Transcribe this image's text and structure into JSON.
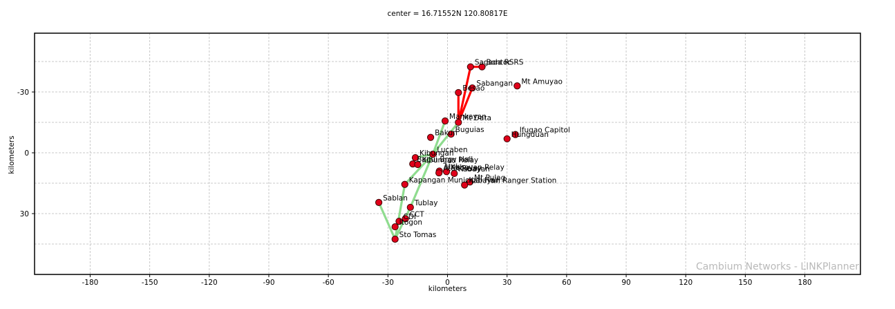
{
  "title": "center = 16.71552N 120.80817E",
  "watermark": "Cambium Networks - LINKPlanner",
  "chart_data": {
    "type": "scatter",
    "title": "center = 16.71552N 120.80817E",
    "xlabel": "kilometers",
    "ylabel": "kilometers",
    "xlim": [
      -208,
      208
    ],
    "ylim": [
      -59,
      60
    ],
    "y_inverted": true,
    "grid": true,
    "x_ticks": [
      -180,
      -150,
      -120,
      -90,
      -60,
      -30,
      0,
      30,
      60,
      90,
      120,
      150,
      180
    ],
    "y_ticks": [
      -30,
      0,
      30
    ],
    "points": [
      {
        "name": "Sagada RS",
        "x": 11.6,
        "y": -42.4
      },
      {
        "name": "Bontoc RS",
        "x": 17.4,
        "y": -42.4
      },
      {
        "name": "Sabangan",
        "x": 12.5,
        "y": -32.0
      },
      {
        "name": "Besao",
        "x": 5.5,
        "y": -29.7
      },
      {
        "name": "Mt Amuyao",
        "x": 35.1,
        "y": -33.0
      },
      {
        "name": "Mankayan",
        "x": -1.2,
        "y": -15.7
      },
      {
        "name": "Mt Data",
        "x": 5.5,
        "y": -15.0
      },
      {
        "name": "Buguias",
        "x": 1.8,
        "y": -9.2
      },
      {
        "name": "Bakun",
        "x": -8.5,
        "y": -7.6
      },
      {
        "name": "Ifugao Capitol",
        "x": 34.2,
        "y": -9.0
      },
      {
        "name": "Hungduan",
        "x": 30.0,
        "y": -6.9
      },
      {
        "name": "Lucaben",
        "x": -7.4,
        "y": 0.7
      },
      {
        "name": "Kibungan",
        "x": -16.2,
        "y": 2.4
      },
      {
        "name": "Bagui Brgy Hall",
        "x": -17.5,
        "y": 5.5
      },
      {
        "name": "Kibungan Relay",
        "x": -15.0,
        "y": 5.8
      },
      {
        "name": "Atok",
        "x": -4.1,
        "y": 9.0
      },
      {
        "name": "Atok Relay",
        "x": -4.3,
        "y": 9.9
      },
      {
        "name": "Kabayan Relay",
        "x": -0.5,
        "y": 9.3
      },
      {
        "name": "Kabayan",
        "x": 3.4,
        "y": 10.2
      },
      {
        "name": "Mt Pulag",
        "x": 11.3,
        "y": 14.4
      },
      {
        "name": "Kabayan Ranger Station",
        "x": 8.6,
        "y": 15.9
      },
      {
        "name": "Kapangan Municipal Hall",
        "x": -21.5,
        "y": 15.6
      },
      {
        "name": "Sablan",
        "x": -34.6,
        "y": 24.5
      },
      {
        "name": "Tublay",
        "x": -18.7,
        "y": 26.9
      },
      {
        "name": "CCT",
        "x": -21.2,
        "y": 32.5
      },
      {
        "name": "CDI",
        "x": -24.4,
        "y": 33.8
      },
      {
        "name": "Itogon",
        "x": -26.4,
        "y": 36.5
      },
      {
        "name": "Sto Tomas",
        "x": -26.4,
        "y": 42.6
      }
    ],
    "links": [
      {
        "from": "Mt Data",
        "to": "Sagada RS",
        "color": "#ff0000"
      },
      {
        "from": "Mt Data",
        "to": "Sabangan",
        "color": "#ff0000"
      },
      {
        "from": "Mt Data",
        "to": "Besao",
        "color": "#ff0000"
      },
      {
        "from": "Sagada RS",
        "to": "Bontoc RS",
        "color": "#ff0000"
      },
      {
        "from": "Mt Data",
        "to": "Lucaben",
        "color": "#8fdc8f"
      },
      {
        "from": "Mankayan",
        "to": "Lucaben",
        "color": "#8fdc8f"
      },
      {
        "from": "Lucaben",
        "to": "Kibungan",
        "color": "#8fdc8f"
      },
      {
        "from": "Lucaben",
        "to": "Tublay",
        "color": "#8fdc8f"
      },
      {
        "from": "Lucaben",
        "to": "Kapangan Municipal Hall",
        "color": "#8fdc8f"
      },
      {
        "from": "Kapangan Municipal Hall",
        "to": "Sto Tomas",
        "color": "#8fdc8f"
      },
      {
        "from": "Sto Tomas",
        "to": "Sablan",
        "color": "#8fdc8f"
      },
      {
        "from": "Sto Tomas",
        "to": "Tublay",
        "color": "#8fdc8f"
      }
    ],
    "colors": {
      "node_fill": "#e0001a",
      "node_stroke": "#3a0000",
      "grid": "#c8c8c8"
    }
  }
}
